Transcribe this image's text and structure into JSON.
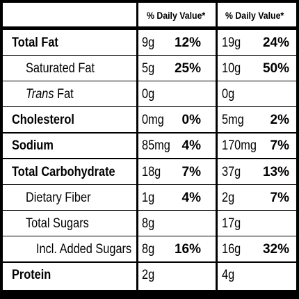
{
  "header": {
    "dv_col1": "% Daily Value*",
    "dv_col2": "% Daily Value*"
  },
  "rows": [
    {
      "label": "Total Fat",
      "style": "bold",
      "indent": 0,
      "c1_amt": "9g",
      "c1_pct": "12%",
      "c2_amt": "19g",
      "c2_pct": "24%"
    },
    {
      "label": "Saturated Fat",
      "style": "normal",
      "indent": 1,
      "c1_amt": "5g",
      "c1_pct": "25%",
      "c2_amt": "10g",
      "c2_pct": "50%"
    },
    {
      "label_italic": "Trans",
      "label": " Fat",
      "style": "normal",
      "indent": 1,
      "c1_amt": "0g",
      "c1_pct": "",
      "c2_amt": "0g",
      "c2_pct": ""
    },
    {
      "label": "Cholesterol",
      "style": "bold",
      "indent": 0,
      "c1_amt": "0mg",
      "c1_pct": "0%",
      "c2_amt": "5mg",
      "c2_pct": "2%"
    },
    {
      "label": "Sodium",
      "style": "bold",
      "indent": 0,
      "c1_amt": "85mg",
      "c1_pct": "4%",
      "c2_amt": "170mg",
      "c2_pct": "7%"
    },
    {
      "label": "Total Carbohydrate",
      "style": "bold",
      "indent": 0,
      "c1_amt": "18g",
      "c1_pct": "7%",
      "c2_amt": "37g",
      "c2_pct": "13%"
    },
    {
      "label": "Dietary Fiber",
      "style": "normal",
      "indent": 1,
      "c1_amt": "1g",
      "c1_pct": "4%",
      "c2_amt": "2g",
      "c2_pct": "7%"
    },
    {
      "label": "Total Sugars",
      "style": "normal",
      "indent": 1,
      "c1_amt": "8g",
      "c1_pct": "",
      "c2_amt": "17g",
      "c2_pct": ""
    },
    {
      "label": "Incl. Added Sugars",
      "style": "normal",
      "indent": 2,
      "c1_amt": "8g",
      "c1_pct": "16%",
      "c2_amt": "16g",
      "c2_pct": "32%"
    },
    {
      "label": "Protein",
      "style": "bold",
      "indent": 0,
      "c1_amt": "2g",
      "c1_pct": "",
      "c2_amt": "4g",
      "c2_pct": ""
    }
  ]
}
